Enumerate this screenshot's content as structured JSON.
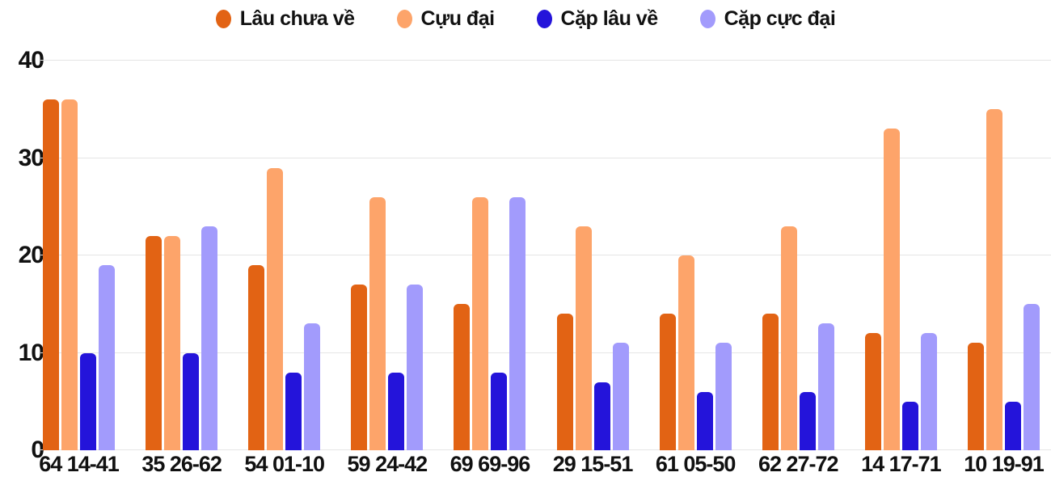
{
  "colors": {
    "background": "#ffffff",
    "grid": "#e5e5e5",
    "text": "#111111",
    "series1": "#e26314",
    "series2": "#fda46a",
    "series3": "#2414da",
    "series4": "#a29bfc"
  },
  "legend": {
    "items": [
      {
        "label": "Lâu chưa về",
        "color": "#e26314"
      },
      {
        "label": "Cựu đại",
        "color": "#fda46a"
      },
      {
        "label": "Cặp lâu về",
        "color": "#2414da"
      },
      {
        "label": "Cặp cực đại",
        "color": "#a29bfc"
      }
    ]
  },
  "chart_data": {
    "type": "bar",
    "title": "",
    "xlabel": "",
    "ylabel": "",
    "ylim": [
      0,
      40
    ],
    "yticks": [
      0,
      10,
      20,
      30,
      40
    ],
    "grid": true,
    "legend_position": "top",
    "categories": [
      "64 14-41",
      "35 26-62",
      "54 01-10",
      "59 24-42",
      "69 69-96",
      "29 15-51",
      "61 05-50",
      "62 27-72",
      "14 17-71",
      "10 19-91"
    ],
    "series": [
      {
        "name": "Lâu chưa về",
        "color": "#e26314",
        "values": [
          36,
          22,
          19,
          17,
          15,
          14,
          14,
          14,
          12,
          11
        ]
      },
      {
        "name": "Cựu đại",
        "color": "#fda46a",
        "values": [
          36,
          22,
          29,
          26,
          26,
          23,
          20,
          23,
          33,
          35
        ]
      },
      {
        "name": "Cặp lâu về",
        "color": "#2414da",
        "values": [
          10,
          10,
          8,
          8,
          8,
          7,
          6,
          6,
          5,
          5
        ]
      },
      {
        "name": "Cặp cực đại",
        "color": "#a29bfc",
        "values": [
          19,
          23,
          13,
          17,
          26,
          11,
          11,
          13,
          12,
          15
        ]
      }
    ]
  }
}
